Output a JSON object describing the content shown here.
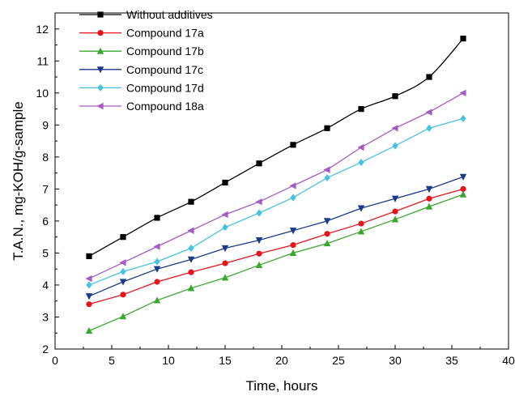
{
  "chart_data": {
    "type": "line",
    "title": "",
    "xlabel": "Time, hours",
    "ylabel": "T.A.N., mg-KOH/g-sample",
    "xlim": [
      0,
      40
    ],
    "ylim": [
      2,
      12.5
    ],
    "x_ticks": [
      0,
      5,
      10,
      15,
      20,
      25,
      30,
      35,
      40
    ],
    "y_ticks": [
      2,
      3,
      4,
      5,
      6,
      7,
      8,
      9,
      10,
      11,
      12
    ],
    "grid": false,
    "legend_position": "top-left",
    "x": [
      3,
      6,
      9,
      12,
      15,
      18,
      21,
      24,
      27,
      30,
      33,
      36
    ],
    "series": [
      {
        "name": "Without additives",
        "color": "#000000",
        "marker": "square",
        "values": [
          4.9,
          5.5,
          6.1,
          6.6,
          7.2,
          7.8,
          8.38,
          8.9,
          9.5,
          9.9,
          10.5,
          11.7
        ]
      },
      {
        "name": "Compound 17a",
        "color": "#e8141c",
        "marker": "circle",
        "values": [
          3.4,
          3.7,
          4.1,
          4.4,
          4.68,
          4.98,
          5.25,
          5.6,
          5.92,
          6.3,
          6.7,
          7.0
        ]
      },
      {
        "name": "Compound 17b",
        "color": "#3aa62e",
        "marker": "triangle-up",
        "values": [
          2.57,
          3.02,
          3.52,
          3.9,
          4.23,
          4.62,
          5.0,
          5.3,
          5.67,
          6.05,
          6.45,
          6.83
        ]
      },
      {
        "name": "Compound 17c",
        "color": "#1a3a8c",
        "marker": "triangle-down",
        "values": [
          3.65,
          4.1,
          4.5,
          4.8,
          5.15,
          5.4,
          5.7,
          6.0,
          6.4,
          6.7,
          7.0,
          7.38
        ]
      },
      {
        "name": "Compound 17d",
        "color": "#45c3e0",
        "marker": "diamond",
        "values": [
          4.0,
          4.42,
          4.73,
          5.15,
          5.8,
          6.25,
          6.73,
          7.35,
          7.83,
          8.35,
          8.9,
          9.2
        ]
      },
      {
        "name": "Compound 18a",
        "color": "#a55bc2",
        "marker": "triangle-left",
        "values": [
          4.2,
          4.7,
          5.2,
          5.7,
          6.2,
          6.6,
          7.1,
          7.6,
          8.3,
          8.9,
          9.4,
          10.0
        ]
      }
    ]
  }
}
